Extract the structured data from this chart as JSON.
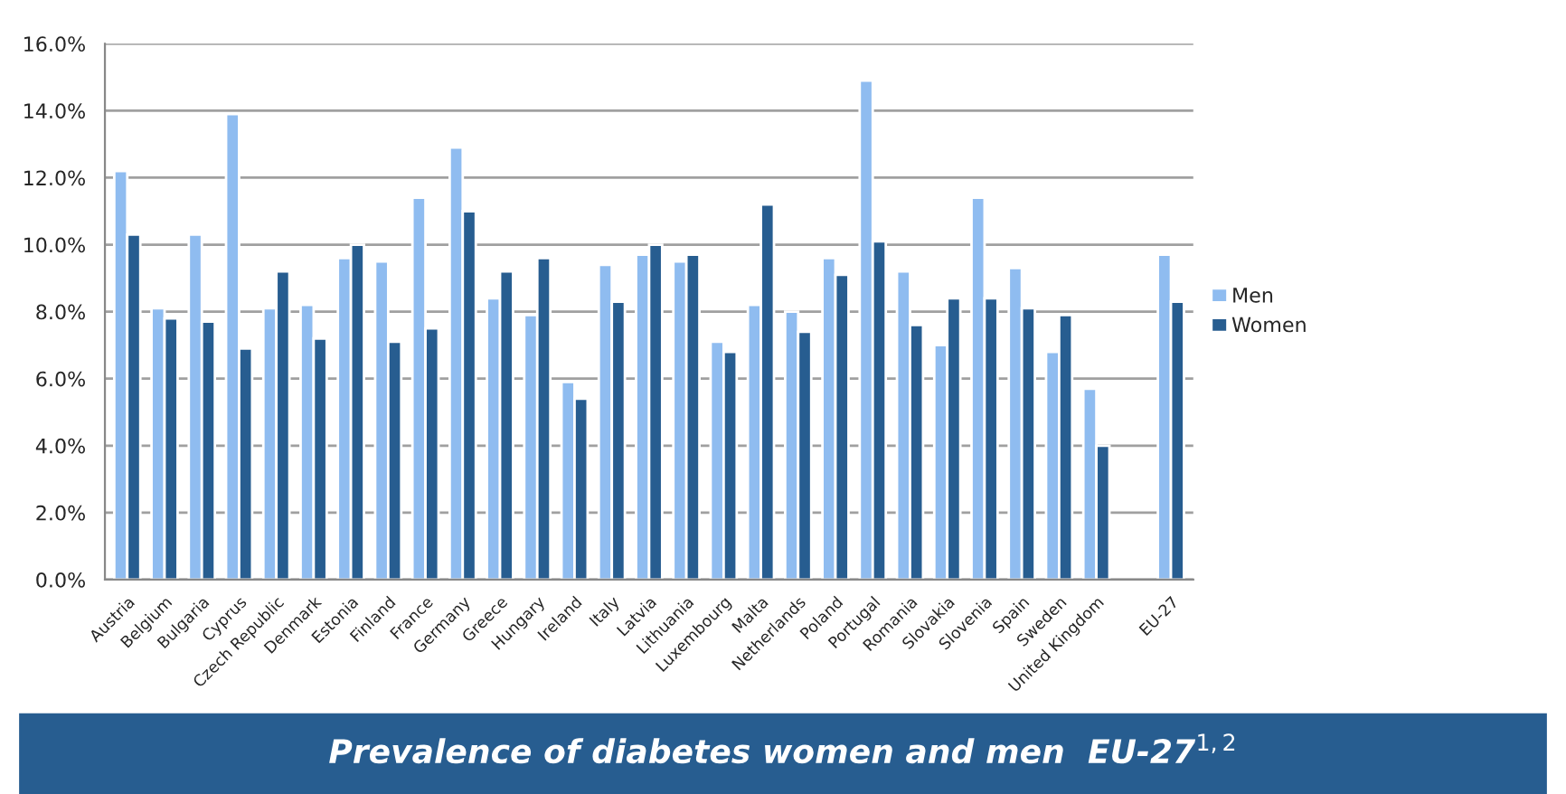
{
  "chart_data": {
    "type": "bar",
    "title": "Prevalence of diabetes women and men  EU-27$^{1,2}$",
    "categories": [
      "Austria",
      "Belgium",
      "Bulgaria",
      "Cyprus",
      "Czech Republic",
      "Denmark",
      "Estonia",
      "Finland",
      "France",
      "Germany",
      "Greece",
      "Hungary",
      "Ireland",
      "Italy",
      "Latvia",
      "Lithuania",
      "Luxembourg",
      "Malta",
      "Netherlands",
      "Poland",
      "Portugal",
      "Romania",
      "Slovakia",
      "Slovenia",
      "Spain",
      "Sweden",
      "United Kingdom",
      null,
      "EU-27"
    ],
    "series": [
      {
        "name": "Men",
        "color": "#8fbcf0",
        "values": [
          12.2,
          8.1,
          10.3,
          13.9,
          8.1,
          8.2,
          9.6,
          9.5,
          11.4,
          12.9,
          8.4,
          7.9,
          5.9,
          9.4,
          9.7,
          9.5,
          7.1,
          8.2,
          8.0,
          9.6,
          14.9,
          9.2,
          7.0,
          11.4,
          9.3,
          6.8,
          5.7,
          null,
          9.7
        ]
      },
      {
        "name": "Women",
        "color": "#275d90",
        "values": [
          10.3,
          7.8,
          7.7,
          6.9,
          9.2,
          7.2,
          10.0,
          7.1,
          7.5,
          11.0,
          9.2,
          9.6,
          5.4,
          8.3,
          10.0,
          9.7,
          6.8,
          11.2,
          7.4,
          9.1,
          10.1,
          7.6,
          8.4,
          8.4,
          8.1,
          7.9,
          4.0,
          null,
          8.3
        ]
      }
    ],
    "ylim": [
      0,
      16
    ],
    "yticks": [
      {
        "value": 0,
        "label": "0.0%"
      },
      {
        "value": 2,
        "label": "2.0%"
      },
      {
        "value": 4,
        "label": "4.0%"
      },
      {
        "value": 6,
        "label": "6.0%"
      },
      {
        "value": 8,
        "label": "8.0%"
      },
      {
        "value": 10,
        "label": "10.0%"
      },
      {
        "value": 12,
        "label": "12.0%"
      },
      {
        "value": 14,
        "label": "14.0%"
      },
      {
        "value": 16,
        "label": "16.0%"
      }
    ],
    "grid": "y",
    "legend": "right"
  }
}
